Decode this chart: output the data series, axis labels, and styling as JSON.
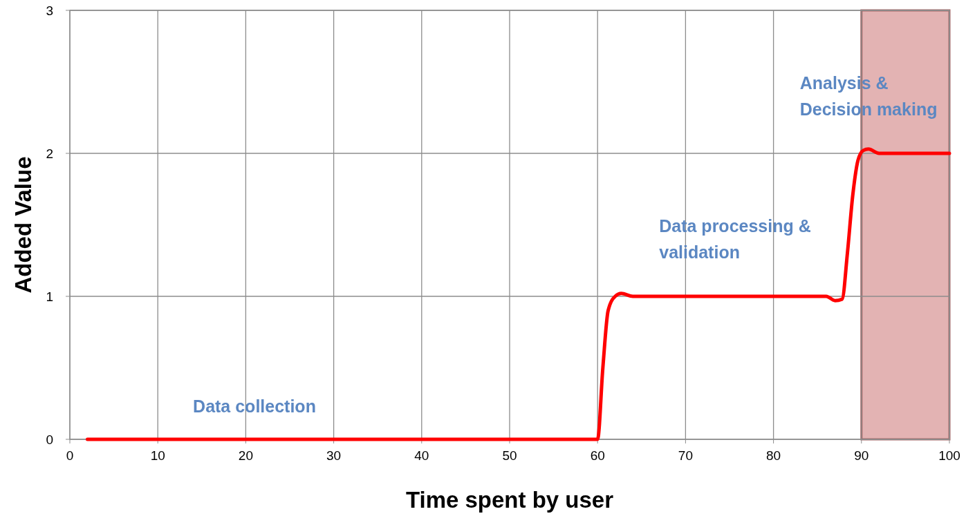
{
  "chart_data": {
    "type": "line",
    "xlabel": "Time spent by user",
    "ylabel": "Added Value",
    "xlim": [
      0,
      100
    ],
    "ylim": [
      0,
      3
    ],
    "xticks": [
      0,
      10,
      20,
      30,
      40,
      50,
      60,
      70,
      80,
      90,
      100
    ],
    "yticks": [
      0,
      1,
      2,
      3
    ],
    "grid": true,
    "marker": "none",
    "line_style": "solid",
    "series": [
      {
        "color": "#ff0000",
        "x": [
          2,
          58,
          59.3,
          60,
          60.6,
          61.2,
          62,
          62.7,
          64,
          86,
          87,
          87.8,
          88.4,
          89,
          89.6,
          90.2,
          90.8,
          92,
          100
        ],
        "values": [
          0,
          0,
          null,
          0,
          0.5,
          0.9,
          1.0,
          1.02,
          1.0,
          1.0,
          0.97,
          0.98,
          1.3,
          1.7,
          1.95,
          2.02,
          2.03,
          2.0,
          2.0
        ]
      }
    ],
    "bands": [
      {
        "axis": "x",
        "from": 90,
        "to": 100,
        "color": "#e3b3b3"
      }
    ],
    "annotations": [
      "Data collection",
      "Data processing &\nvalidation",
      "Analysis &\nDecision making"
    ]
  }
}
